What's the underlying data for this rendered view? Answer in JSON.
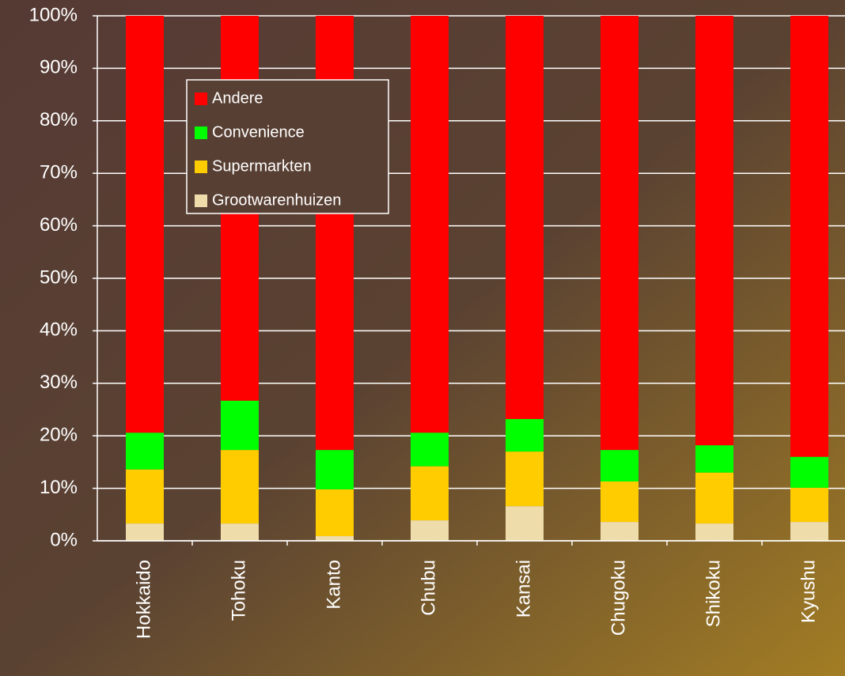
{
  "chart_data": {
    "type": "stacked_bar",
    "categories": [
      "Hokkaido",
      "Tohoku",
      "Kanto",
      "Chubu",
      "Kansai",
      "Chugoku",
      "Shikoku",
      "Kyushu"
    ],
    "series": [
      {
        "name": "Grootwarenhuizen",
        "color": "#eedcaa",
        "values": [
          3.3,
          3.3,
          0.9,
          3.9,
          6.6,
          3.6,
          3.3,
          3.6
        ]
      },
      {
        "name": "Supermarkten",
        "color": "#ffcc00",
        "values": [
          10.3,
          14.0,
          8.9,
          10.3,
          10.4,
          7.7,
          9.7,
          6.5
        ]
      },
      {
        "name": "Convenience",
        "color": "#00ff00",
        "values": [
          7.0,
          9.4,
          7.5,
          6.4,
          6.2,
          6.0,
          5.2,
          5.9
        ]
      },
      {
        "name": "Andere",
        "color": "#ff0000",
        "values": [
          79.4,
          73.3,
          82.7,
          79.4,
          76.8,
          82.7,
          81.8,
          84.0
        ]
      }
    ],
    "ylim": [
      0,
      100
    ],
    "yticks": [
      {
        "value": 0,
        "label": "0%"
      },
      {
        "value": 10,
        "label": "10%"
      },
      {
        "value": 20,
        "label": "20%"
      },
      {
        "value": 30,
        "label": "30%"
      },
      {
        "value": 40,
        "label": "40%"
      },
      {
        "value": 50,
        "label": "50%"
      },
      {
        "value": 60,
        "label": "60%"
      },
      {
        "value": 70,
        "label": "70%"
      },
      {
        "value": 80,
        "label": "80%"
      },
      {
        "value": 90,
        "label": "90%"
      },
      {
        "value": 100,
        "label": "100%"
      }
    ],
    "grid": true,
    "legend": "upper left"
  }
}
